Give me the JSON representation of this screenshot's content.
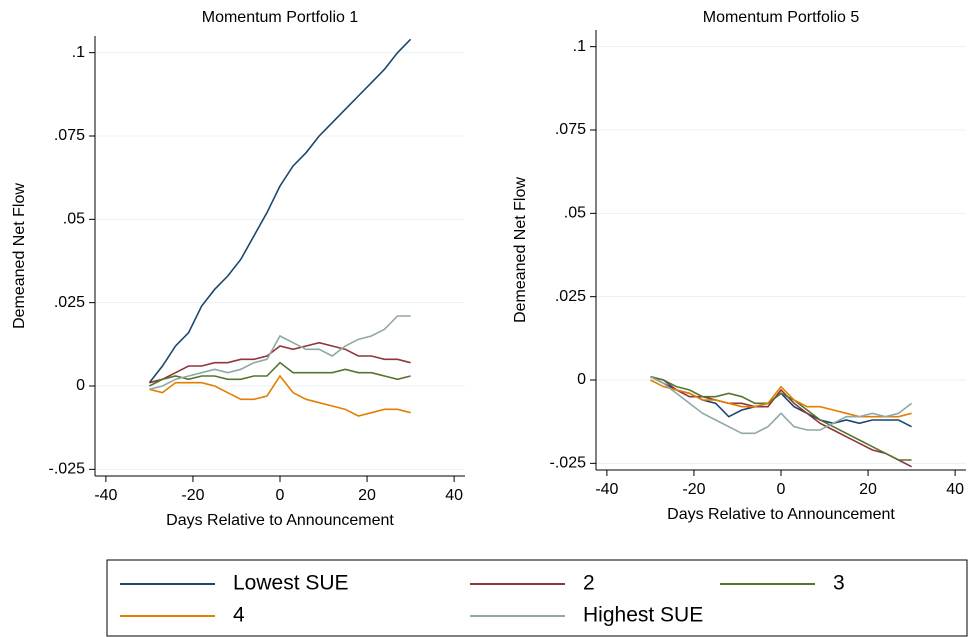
{
  "chart_data": [
    {
      "type": "line",
      "title": "Momentum Portfolio 1",
      "xlabel": "Days Relative to Announcement",
      "ylabel": "Demeaned Net Flow",
      "x": [
        -30,
        -27,
        -24,
        -21,
        -18,
        -15,
        -12,
        -9,
        -6,
        -3,
        0,
        3,
        6,
        9,
        12,
        15,
        18,
        21,
        24,
        27,
        30
      ],
      "series": [
        {
          "name": "Lowest SUE",
          "color": "#1a476f",
          "values": [
            0.001,
            0.006,
            0.012,
            0.016,
            0.024,
            0.029,
            0.033,
            0.038,
            0.045,
            0.052,
            0.06,
            0.066,
            0.07,
            0.075,
            0.079,
            0.083,
            0.087,
            0.091,
            0.095,
            0.1,
            0.104
          ]
        },
        {
          "name": "2",
          "color": "#90353b",
          "values": [
            0.001,
            0.002,
            0.004,
            0.006,
            0.006,
            0.007,
            0.007,
            0.008,
            0.008,
            0.009,
            0.012,
            0.011,
            0.012,
            0.013,
            0.012,
            0.011,
            0.009,
            0.009,
            0.008,
            0.008,
            0.007
          ]
        },
        {
          "name": "3",
          "color": "#55752f",
          "values": [
            0,
            0.002,
            0.003,
            0.002,
            0.003,
            0.003,
            0.002,
            0.002,
            0.003,
            0.003,
            0.007,
            0.004,
            0.004,
            0.004,
            0.004,
            0.005,
            0.004,
            0.004,
            0.003,
            0.002,
            0.003
          ]
        },
        {
          "name": "4",
          "color": "#e37e00",
          "values": [
            -0.001,
            -0.002,
            0.001,
            0.001,
            0.001,
            0,
            -0.002,
            -0.004,
            -0.004,
            -0.003,
            0.003,
            -0.002,
            -0.004,
            -0.005,
            -0.006,
            -0.007,
            -0.009,
            -0.008,
            -0.007,
            -0.007,
            -0.008
          ]
        },
        {
          "name": "Highest SUE",
          "color": "#8fa9a5",
          "values": [
            -0.001,
            0,
            0.002,
            0.003,
            0.004,
            0.005,
            0.004,
            0.005,
            0.007,
            0.008,
            0.015,
            0.013,
            0.011,
            0.011,
            0.009,
            0.012,
            0.014,
            0.015,
            0.017,
            0.021,
            0.021
          ]
        }
      ],
      "xlim": [
        -42.5,
        42.5
      ],
      "ylim": [
        -0.027,
        0.105
      ],
      "xticks": [
        -40,
        -20,
        0,
        20,
        40
      ],
      "yticks": [
        {
          "value": -0.025,
          "label": "-.025"
        },
        0,
        {
          "value": 0.025,
          "label": ".025"
        },
        {
          "value": 0.05,
          "label": ".05"
        },
        {
          "value": 0.075,
          "label": ".075"
        },
        {
          "value": 0.1,
          "label": ".1"
        }
      ],
      "grid": true,
      "legend": "bottom"
    },
    {
      "type": "line",
      "title": "Momentum Portfolio 5",
      "xlabel": "Days Relative to Announcement",
      "ylabel": "Demeaned Net Flow",
      "x": [
        -30,
        -27,
        -24,
        -21,
        -18,
        -15,
        -12,
        -9,
        -6,
        -3,
        0,
        3,
        6,
        9,
        12,
        15,
        18,
        21,
        24,
        27,
        30
      ],
      "series": [
        {
          "name": "Lowest SUE",
          "color": "#1a476f",
          "values": [
            0.001,
            -0.001,
            -0.003,
            -0.004,
            -0.006,
            -0.007,
            -0.011,
            -0.009,
            -0.008,
            -0.007,
            -0.004,
            -0.008,
            -0.01,
            -0.012,
            -0.013,
            -0.012,
            -0.013,
            -0.012,
            -0.012,
            -0.012,
            -0.014
          ]
        },
        {
          "name": "2",
          "color": "#90353b",
          "values": [
            0.001,
            0,
            -0.003,
            -0.005,
            -0.005,
            -0.006,
            -0.007,
            -0.007,
            -0.008,
            -0.008,
            -0.003,
            -0.007,
            -0.01,
            -0.013,
            -0.015,
            -0.017,
            -0.019,
            -0.021,
            -0.022,
            -0.024,
            -0.026
          ]
        },
        {
          "name": "3",
          "color": "#55752f",
          "values": [
            0.001,
            0,
            -0.002,
            -0.003,
            -0.005,
            -0.005,
            -0.004,
            -0.005,
            -0.007,
            -0.007,
            -0.004,
            -0.006,
            -0.009,
            -0.012,
            -0.014,
            -0.016,
            -0.018,
            -0.02,
            -0.022,
            -0.024,
            -0.024
          ]
        },
        {
          "name": "4",
          "color": "#e37e00",
          "values": [
            0,
            -0.002,
            -0.003,
            -0.004,
            -0.006,
            -0.006,
            -0.007,
            -0.008,
            -0.008,
            -0.007,
            -0.002,
            -0.006,
            -0.008,
            -0.008,
            -0.009,
            -0.01,
            -0.011,
            -0.011,
            -0.011,
            -0.011,
            -0.01
          ]
        },
        {
          "name": "Highest SUE",
          "color": "#8fa9a5",
          "values": [
            0.001,
            -0.001,
            -0.004,
            -0.007,
            -0.01,
            -0.012,
            -0.014,
            -0.016,
            -0.016,
            -0.014,
            -0.01,
            -0.014,
            -0.015,
            -0.015,
            -0.013,
            -0.011,
            -0.011,
            -0.01,
            -0.011,
            -0.01,
            -0.007
          ]
        }
      ],
      "xlim": [
        -42.5,
        42.5
      ],
      "ylim": [
        -0.027,
        0.105
      ],
      "xticks": [
        -40,
        -20,
        0,
        20,
        40
      ],
      "yticks": [
        {
          "value": -0.025,
          "label": "-.025"
        },
        0,
        {
          "value": 0.025,
          "label": ".025"
        },
        {
          "value": 0.05,
          "label": ".05"
        },
        {
          "value": 0.075,
          "label": ".075"
        },
        {
          "value": 0.1,
          "label": ".1"
        }
      ],
      "grid": true
    }
  ]
}
